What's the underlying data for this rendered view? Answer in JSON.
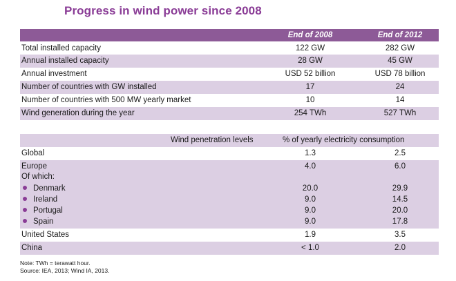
{
  "title": "Progress in wind power since 2008",
  "table1": {
    "headers": [
      "",
      "End of 2008",
      "End of  2012"
    ],
    "rows": [
      [
        "Total installed capacity",
        "122 GW",
        "282 GW"
      ],
      [
        "Annual installed capacity",
        "28 GW",
        "45 GW"
      ],
      [
        "Annual investment",
        "USD 52 billion",
        "USD 78 billion"
      ],
      [
        "Number of countries with GW installed",
        "17",
        "24"
      ],
      [
        "Number of countries with 500 MW yearly market",
        "10",
        "14"
      ],
      [
        "Wind generation during the year",
        "254 TWh",
        "527 TWh"
      ]
    ]
  },
  "table2": {
    "headers": [
      "Wind penetration levels",
      "% of yearly electricity consumption"
    ],
    "rows": [
      [
        "Global",
        "1.3",
        "2.5"
      ],
      [
        "Europe",
        "4.0",
        "6.0"
      ],
      [
        "Of which:",
        "",
        ""
      ],
      [
        "Denmark",
        "20.0",
        "29.9"
      ],
      [
        "Ireland",
        "9.0",
        "14.5"
      ],
      [
        "Portugal",
        "9.0",
        "20.0"
      ],
      [
        "Spain",
        "9.0",
        "17.8"
      ],
      [
        "United States",
        "1.9",
        "3.5"
      ],
      [
        "China",
        "< 1.0",
        "2.0"
      ]
    ]
  },
  "notes": [
    "Note: TWh = terawatt hour.",
    "Source: IEA, 2013; Wind IA, 2013."
  ]
}
